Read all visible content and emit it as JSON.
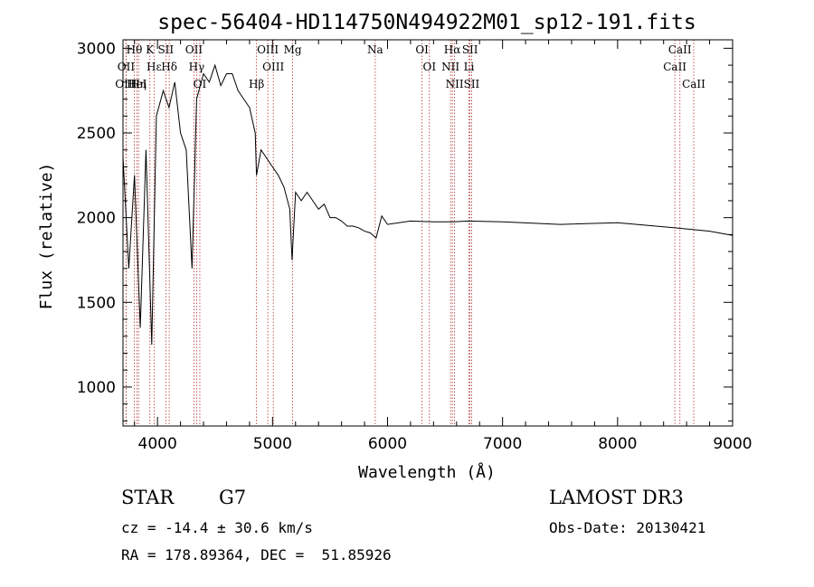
{
  "chart_data": {
    "type": "line",
    "title": "spec-56404-HD114750N494922M01_sp12-191.fits",
    "xlabel": "Wavelength (Å)",
    "ylabel": "Flux (relative)",
    "xlim": [
      3700,
      9000
    ],
    "ylim": [
      770,
      3050
    ],
    "xticks": [
      4000,
      5000,
      6000,
      7000,
      8000,
      9000
    ],
    "yticks": [
      1000,
      1500,
      2000,
      2500,
      3000
    ],
    "grid": false,
    "series": [
      {
        "x": [
          3700,
          3750,
          3800,
          3850,
          3900,
          3950,
          3990,
          4050,
          4100,
          4150,
          4200,
          4250,
          4300,
          4340,
          4400,
          4450,
          4500,
          4550,
          4600,
          4650,
          4700,
          4750,
          4800,
          4850,
          4861,
          4900,
          4950,
          5000,
          5050,
          5100,
          5150,
          5170,
          5200,
          5250,
          5300,
          5350,
          5400,
          5450,
          5500,
          5550,
          5600,
          5650,
          5700,
          5750,
          5800,
          5850,
          5900,
          5950,
          6000,
          6200,
          6400,
          6563,
          6700,
          7000,
          7500,
          8000,
          8500,
          8800,
          9000
        ],
        "y": [
          2360,
          1700,
          2250,
          1350,
          2400,
          1250,
          2600,
          2750,
          2650,
          2800,
          2500,
          2400,
          1700,
          2700,
          2850,
          2800,
          2900,
          2780,
          2850,
          2850,
          2750,
          2700,
          2650,
          2500,
          2250,
          2400,
          2350,
          2300,
          2250,
          2180,
          2050,
          1750,
          2150,
          2100,
          2150,
          2100,
          2050,
          2080,
          2000,
          2000,
          1980,
          1950,
          1950,
          1940,
          1920,
          1910,
          1880,
          2010,
          1960,
          1980,
          1975,
          1975,
          1980,
          1975,
          1960,
          1970,
          1940,
          1920,
          1895
        ]
      }
    ],
    "line_labels": [
      {
        "label": "Hθ",
        "x": 3798
      },
      {
        "label": "OII",
        "x": 3727
      },
      {
        "label": "OIII",
        "x": 3726
      },
      {
        "label": "HeI",
        "x": 3820
      },
      {
        "label": "Hη",
        "x": 3835
      },
      {
        "label": "K",
        "x": 3934
      },
      {
        "label": "SII",
        "x": 4072
      },
      {
        "label": "Hε",
        "x": 3970
      },
      {
        "label": "Hδ",
        "x": 4102
      },
      {
        "label": "OII",
        "x": 4317
      },
      {
        "label": "Hγ",
        "x": 4340
      },
      {
        "label": "OI",
        "x": 4368
      },
      {
        "label": "OIII",
        "x": 4959
      },
      {
        "label": "OIII",
        "x": 5007
      },
      {
        "label": "Hβ",
        "x": 4861
      },
      {
        "label": "Mg",
        "x": 5175
      },
      {
        "label": "Na",
        "x": 5893
      },
      {
        "label": "OI",
        "x": 6300
      },
      {
        "label": "OI",
        "x": 6364
      },
      {
        "label": "Hα",
        "x": 6563
      },
      {
        "label": "NII",
        "x": 6548
      },
      {
        "label": "NII",
        "x": 6583
      },
      {
        "label": "SII",
        "x": 6717
      },
      {
        "label": "Li",
        "x": 6708
      },
      {
        "label": "SII",
        "x": 6731
      },
      {
        "label": "CaII",
        "x": 8542
      },
      {
        "label": "CaII",
        "x": 8498
      },
      {
        "label": "CaII",
        "x": 8662
      }
    ]
  },
  "footer": {
    "class_label": "STAR",
    "subclass": "G7",
    "survey": "LAMOST DR3",
    "redshift": "cz = -14.4 ± 30.6 km/s",
    "obs_date": "Obs-Date: 20130421",
    "coords": "RA = 178.89364, DEC =  51.85926"
  }
}
